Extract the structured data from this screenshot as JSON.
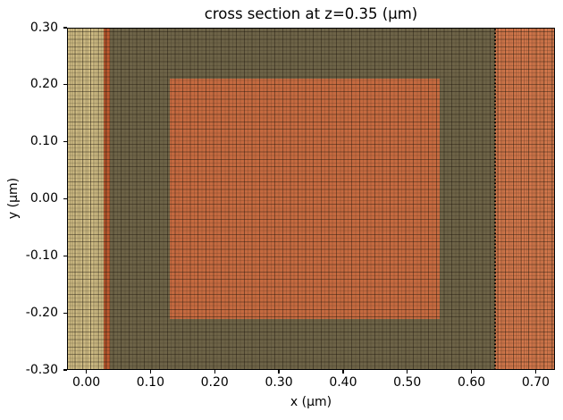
{
  "chart_data": {
    "type": "heatmap",
    "title": "cross section at z=0.35 (μm)",
    "xlabel": "x (μm)",
    "ylabel": "y (μm)",
    "xlim": [
      -0.03,
      0.73
    ],
    "ylim": [
      -0.3,
      0.3
    ],
    "grid": true,
    "legend": false,
    "x_ticks": [
      {
        "value": 0.0,
        "label": "0.00"
      },
      {
        "value": 0.1,
        "label": "0.10"
      },
      {
        "value": 0.2,
        "label": "0.20"
      },
      {
        "value": 0.3,
        "label": "0.30"
      },
      {
        "value": 0.4,
        "label": "0.40"
      },
      {
        "value": 0.5,
        "label": "0.50"
      },
      {
        "value": 0.6,
        "label": "0.60"
      },
      {
        "value": 0.7,
        "label": "0.70"
      }
    ],
    "y_ticks": [
      {
        "value": 0.3,
        "label": "0.30"
      },
      {
        "value": 0.2,
        "label": "0.20"
      },
      {
        "value": 0.1,
        "label": "0.10"
      },
      {
        "value": 0.0,
        "label": "0.00"
      },
      {
        "value": -0.1,
        "label": "-0.10"
      },
      {
        "value": -0.2,
        "label": "-0.20"
      },
      {
        "value": -0.3,
        "label": "-0.30"
      }
    ],
    "background_region": {
      "name": "cladding-background",
      "color": "#6d6347"
    },
    "regions": [
      {
        "name": "left-slab",
        "x0": -0.03,
        "x1": 0.027,
        "y0": -0.3,
        "y1": 0.3,
        "color": "#cfbc84",
        "dense_mesh": true
      },
      {
        "name": "thin-liner",
        "x0": 0.027,
        "x1": 0.037,
        "y0": -0.3,
        "y1": 0.3,
        "color": "#bc5a30",
        "dense_mesh": true
      },
      {
        "name": "core-block",
        "x0": 0.13,
        "x1": 0.55,
        "y0": -0.21,
        "y1": 0.21,
        "color": "#c56a40",
        "dense_mesh": false
      },
      {
        "name": "right-slab",
        "x0": 0.637,
        "x1": 0.73,
        "y0": -0.3,
        "y1": 0.3,
        "color": "#d4784c",
        "dense_mesh": true
      }
    ],
    "boundary_line": {
      "x": 0.637,
      "style": "dotted",
      "color": "#000000"
    },
    "mesh_line_color": "#191208"
  }
}
